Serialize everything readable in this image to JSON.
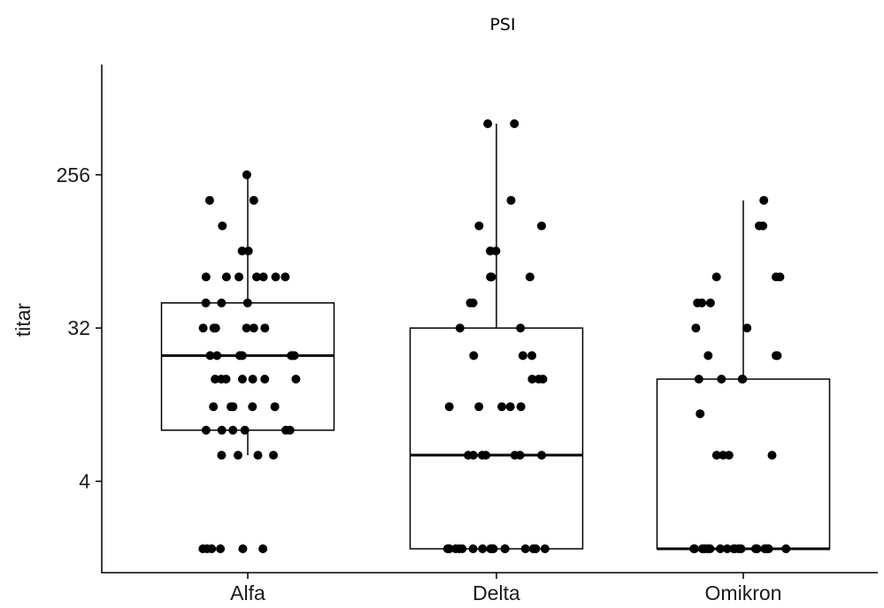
{
  "chart_data": {
    "type": "box",
    "title": "PSI",
    "xlabel": "",
    "ylabel": "titar",
    "y_scale": "log2",
    "y_ticks": [
      4,
      32,
      256
    ],
    "y_tick_labels": [
      "4",
      "32",
      "256"
    ],
    "ylim": [
      1.1,
      520
    ],
    "categories": [
      "Alfa",
      "Delta",
      "Omikron"
    ],
    "grid": false,
    "boxes": [
      {
        "category": "Alfa",
        "lower_whisker": 5.7,
        "q1": 8,
        "median": 22,
        "q3": 45,
        "upper_whisker": 256
      },
      {
        "category": "Delta",
        "lower_whisker": 1.6,
        "q1": 1.6,
        "median": 5.7,
        "q3": 32,
        "upper_whisker": 512
      },
      {
        "category": "Omikron",
        "lower_whisker": 1.6,
        "q1": 1.6,
        "median": 1.6,
        "q3": 16,
        "upper_whisker": 181
      }
    ],
    "points": [
      {
        "category": "Alfa",
        "values": [
          256,
          181,
          181,
          128,
          91,
          91,
          64,
          64,
          64,
          64,
          64,
          64,
          64,
          45,
          45,
          45,
          32,
          32,
          32,
          32,
          32,
          32,
          22,
          22,
          22,
          22,
          22,
          22,
          22,
          16,
          16,
          16,
          16,
          16,
          16,
          16,
          11,
          11,
          11,
          11,
          11,
          8,
          8,
          8,
          8,
          8,
          8,
          5.7,
          5.7,
          5.7,
          5.7,
          1.6,
          1.6,
          1.6,
          1.6,
          1.6,
          1.6
        ]
      },
      {
        "category": "Delta",
        "values": [
          512,
          512,
          181,
          128,
          128,
          91,
          91,
          91,
          64,
          64,
          64,
          45,
          45,
          32,
          32,
          22,
          22,
          22,
          16,
          16,
          16,
          11,
          11,
          11,
          11,
          11,
          5.7,
          5.7,
          5.7,
          5.7,
          5.7,
          5.7,
          5.7,
          1.6,
          1.6,
          1.6,
          1.6,
          1.6,
          1.6,
          1.6,
          1.6,
          1.6,
          1.6,
          1.6,
          1.6,
          1.6,
          1.6,
          1.6,
          1.6
        ]
      },
      {
        "category": "Omikron",
        "values": [
          181,
          128,
          128,
          64,
          64,
          64,
          45,
          45,
          45,
          32,
          32,
          22,
          22,
          22,
          16,
          16,
          16,
          16,
          10,
          5.7,
          5.7,
          5.7,
          5.7,
          1.6,
          1.6,
          1.6,
          1.6,
          1.6,
          1.6,
          1.6,
          1.6,
          1.6,
          1.6,
          1.6,
          1.6,
          1.6,
          1.6,
          1.6,
          1.6,
          1.6,
          1.6
        ]
      }
    ]
  }
}
